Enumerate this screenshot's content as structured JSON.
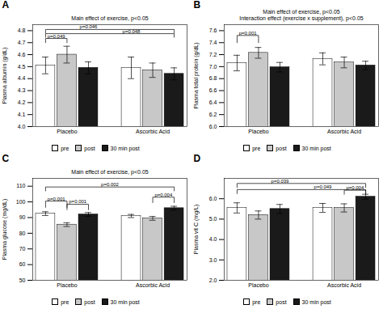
{
  "chart_data": [
    {
      "type": "bar",
      "panel": "A",
      "title": "Main effect of exercise, p<0.05",
      "ylabel": "Plasma albumin (g/dL)",
      "categories": [
        "Placebo",
        "Ascorbic Acid"
      ],
      "series": [
        {
          "name": "pre",
          "color": "white",
          "values": [
            4.51,
            4.49
          ],
          "errors": [
            0.07,
            0.09
          ]
        },
        {
          "name": "post",
          "color": "#c8c8c8",
          "values": [
            4.6,
            4.47
          ],
          "errors": [
            0.07,
            0.06
          ]
        },
        {
          "name": "30 min post",
          "color": "#1a1a1a",
          "values": [
            4.49,
            4.44
          ],
          "errors": [
            0.05,
            0.05
          ]
        }
      ],
      "ylim": [
        4.0,
        4.85
      ],
      "yticks": [
        {
          "value": 4.0,
          "label": "4.0"
        },
        {
          "value": 4.1,
          "label": "4.1"
        },
        {
          "value": 4.2,
          "label": "4.2"
        },
        {
          "value": 4.3,
          "label": "4.3"
        },
        {
          "value": 4.4,
          "label": "4.4"
        },
        {
          "value": 4.5,
          "label": "4.5"
        },
        {
          "value": 4.6,
          "label": "4.6"
        },
        {
          "value": 4.7,
          "label": "4.7"
        },
        {
          "value": 4.8,
          "label": "4.8"
        }
      ],
      "legend": "bottom",
      "annotations": [
        {
          "text": "p=0.049",
          "from": [
            "Placebo",
            "pre"
          ],
          "to": [
            "Placebo",
            "post"
          ],
          "y": [
            4.7,
            4.735
          ]
        },
        {
          "text": "p=0.046",
          "from": [
            "Placebo",
            "pre"
          ],
          "to": [
            "Ascorbic Acid",
            "30 min post"
          ],
          "y": [
            4.78,
            4.81
          ]
        },
        {
          "text": "p=0.048",
          "from": [
            "Placebo",
            "pre"
          ],
          "to": [
            "Ascorbic Acid",
            "30 min post"
          ],
          "y": [
            4.745,
            4.775
          ]
        }
      ]
    },
    {
      "type": "bar",
      "panel": "B",
      "title": "Main effect of exercise, p<0.05\nInteraction effect (exercise x supplement), p<0.05",
      "ylabel": "Plasma total protein (g/dL)",
      "categories": [
        "Placebo",
        "Ascorbic Acid"
      ],
      "series": [
        {
          "name": "pre",
          "color": "white",
          "values": [
            7.06,
            7.13
          ],
          "errors": [
            0.13,
            0.1
          ]
        },
        {
          "name": "post",
          "color": "#c8c8c8",
          "values": [
            7.23,
            7.07
          ],
          "errors": [
            0.09,
            0.09
          ]
        },
        {
          "name": "30 min post",
          "color": "#1a1a1a",
          "values": [
            6.99,
            7.02
          ],
          "errors": [
            0.08,
            0.07
          ]
        }
      ],
      "ylim": [
        6.0,
        7.7
      ],
      "yticks": [
        {
          "value": 6.0,
          "label": "6.0"
        },
        {
          "value": 6.2,
          "label": "6.2"
        },
        {
          "value": 6.4,
          "label": "6.4"
        },
        {
          "value": 6.6,
          "label": "6.6"
        },
        {
          "value": 6.8,
          "label": "6.8"
        },
        {
          "value": 7.0,
          "label": "7.0"
        },
        {
          "value": 7.2,
          "label": "7.2"
        },
        {
          "value": 7.4,
          "label": "7.4"
        },
        {
          "value": 7.6,
          "label": "7.6"
        }
      ],
      "legend": "bottom",
      "annotations": [
        {
          "text": "p=0.001",
          "from": [
            "Placebo",
            "pre"
          ],
          "to": [
            "Placebo",
            "post"
          ],
          "y": [
            7.4,
            7.52
          ]
        }
      ]
    },
    {
      "type": "bar",
      "panel": "C",
      "title": "Main effect of exercise, p<0.05",
      "ylabel": "Plasma glucose (mg/dL)",
      "categories": [
        "Placebo",
        "Ascorbic Acid"
      ],
      "series": [
        {
          "name": "pre",
          "color": "white",
          "values": [
            92.5,
            91.0
          ],
          "errors": [
            1.2,
            1.0
          ]
        },
        {
          "name": "post",
          "color": "#c8c8c8",
          "values": [
            85.5,
            89.5
          ],
          "errors": [
            1.2,
            1.2
          ]
        },
        {
          "name": "30 min post",
          "color": "#1a1a1a",
          "values": [
            92.0,
            96.0
          ],
          "errors": [
            1.2,
            1.2
          ]
        }
      ],
      "ylim": [
        50,
        115
      ],
      "yticks": [
        50,
        60,
        70,
        80,
        90,
        100,
        110
      ],
      "legend": "bottom",
      "annotations": [
        {
          "text": "p=0.001",
          "from": [
            "Placebo",
            "pre"
          ],
          "to": [
            "Placebo",
            "post"
          ],
          "y": [
            96.5,
            100.5
          ]
        },
        {
          "text": "p=0.001",
          "from": [
            "Placebo",
            "post"
          ],
          "to": [
            "Placebo",
            "30 min post"
          ],
          "y": [
            95.0,
            98.5
          ]
        },
        {
          "text": "p=0.004",
          "from": [
            "Ascorbic Acid",
            "post"
          ],
          "to": [
            "Ascorbic Acid",
            "30 min post"
          ],
          "y": [
            99.5,
            103.0
          ]
        },
        {
          "text": "p=0.002",
          "from": [
            "Placebo",
            "pre"
          ],
          "to": [
            "Ascorbic Acid",
            "30 min post"
          ],
          "y": [
            107.0,
            109.5
          ]
        }
      ]
    },
    {
      "type": "bar",
      "panel": "D",
      "ylabel": "Plasma vit C (mg/L)",
      "categories": [
        "Placebo",
        "Ascorbic Acid"
      ],
      "series": [
        {
          "name": "pre",
          "color": "white",
          "values": [
            5.55,
            5.55
          ],
          "errors": [
            0.25,
            0.22
          ]
        },
        {
          "name": "post",
          "color": "#c8c8c8",
          "values": [
            5.2,
            5.55
          ],
          "errors": [
            0.2,
            0.2
          ]
        },
        {
          "name": "30 min post",
          "color": "#1a1a1a",
          "values": [
            5.5,
            6.1
          ],
          "errors": [
            0.22,
            0.12
          ]
        }
      ],
      "ylim": [
        2.0,
        7.0
      ],
      "yticks": [
        {
          "value": 2.0,
          "label": "2.0"
        },
        {
          "value": 3.0,
          "label": "3.0"
        },
        {
          "value": 4.0,
          "label": "4.0"
        },
        {
          "value": 5.0,
          "label": "5.0"
        },
        {
          "value": 6.0,
          "label": "6.0"
        }
      ],
      "legend": "bottom",
      "annotations": [
        {
          "text": "p=0.039",
          "from": [
            "Placebo",
            "pre"
          ],
          "to": [
            "Ascorbic Acid",
            "30 min post"
          ],
          "y": [
            6.55,
            6.75
          ]
        },
        {
          "text": "p=0.049",
          "from": [
            "Placebo",
            "pre"
          ],
          "to": [
            "Ascorbic Acid",
            "30 min post"
          ],
          "y": [
            6.25,
            6.45
          ]
        },
        {
          "text": "p=0.004",
          "from": [
            "Ascorbic Acid",
            "post"
          ],
          "to": [
            "Ascorbic Acid",
            "30 min post"
          ],
          "y": [
            6.22,
            6.42
          ]
        }
      ]
    }
  ]
}
